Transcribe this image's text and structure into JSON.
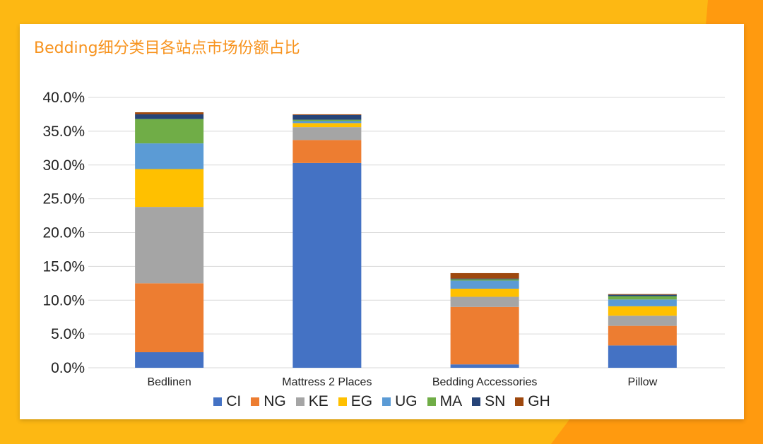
{
  "chart_data": {
    "type": "bar",
    "stacked": true,
    "title": "Bedding细分类目各站点市场份额占比",
    "categories": [
      "Bedlinen",
      "Mattress 2 Places",
      "Bedding Accessories",
      "Pillow"
    ],
    "y_ticks": [
      "0.0%",
      "5.0%",
      "10.0%",
      "15.0%",
      "20.0%",
      "25.0%",
      "30.0%",
      "35.0%",
      "40.0%"
    ],
    "ylim": [
      0,
      40
    ],
    "grid": true,
    "legend_position": "bottom",
    "series": [
      {
        "name": "CI",
        "color": "#4472C4",
        "values": [
          2.3,
          30.3,
          0.5,
          3.3
        ]
      },
      {
        "name": "NG",
        "color": "#ED7D31",
        "values": [
          10.2,
          3.4,
          8.5,
          2.9
        ]
      },
      {
        "name": "KE",
        "color": "#A5A5A5",
        "values": [
          11.3,
          1.9,
          1.5,
          1.5
        ]
      },
      {
        "name": "EG",
        "color": "#FFC000",
        "values": [
          5.6,
          0.6,
          1.2,
          1.4
        ]
      },
      {
        "name": "UG",
        "color": "#5B9BD5",
        "values": [
          3.8,
          0.3,
          1.2,
          1.0
        ]
      },
      {
        "name": "MA",
        "color": "#70AD47",
        "values": [
          3.6,
          0.2,
          0.2,
          0.5
        ]
      },
      {
        "name": "SN",
        "color": "#264478",
        "values": [
          0.7,
          0.7,
          0.1,
          0.2
        ]
      },
      {
        "name": "GH",
        "color": "#9E480E",
        "values": [
          0.3,
          0.1,
          0.8,
          0.1
        ]
      }
    ]
  }
}
